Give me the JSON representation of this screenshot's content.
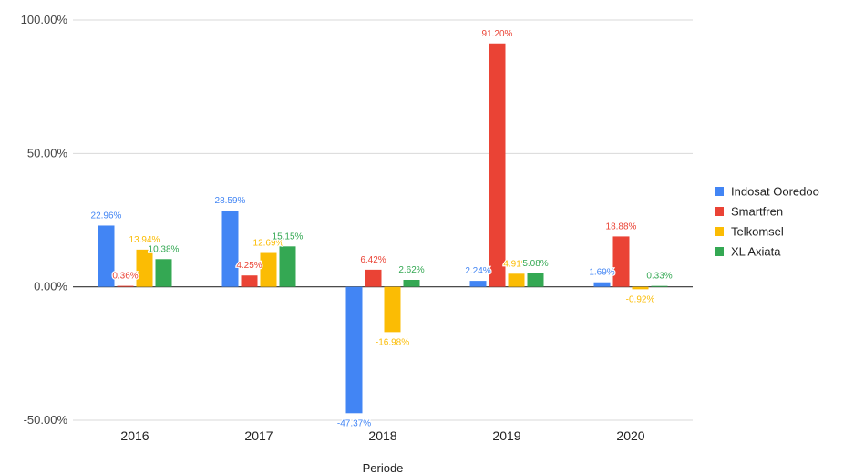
{
  "chart_data": {
    "type": "bar",
    "title": "",
    "xlabel": "Periode",
    "ylabel": "",
    "categories": [
      "2016",
      "2017",
      "2018",
      "2019",
      "2020"
    ],
    "ylim": [
      -50,
      100
    ],
    "yticks": [
      -50,
      0,
      50,
      100
    ],
    "ytick_labels": [
      "-50.00%",
      "0.00%",
      "50.00%",
      "100.00%"
    ],
    "grid": true,
    "legend_position": "right",
    "series": [
      {
        "name": "Indosat Ooredoo",
        "color": "#4285f4",
        "values": [
          22.96,
          28.59,
          -47.37,
          2.24,
          1.69
        ],
        "labels": [
          "22.96%",
          "28.59%",
          "-47.37%",
          "2.24%",
          "1.69%"
        ]
      },
      {
        "name": "Smartfren",
        "color": "#ea4335",
        "values": [
          0.36,
          4.25,
          6.42,
          91.2,
          18.88
        ],
        "labels": [
          "0.36%",
          "4.25%",
          "6.42%",
          "91.20%",
          "18.88%"
        ]
      },
      {
        "name": "Telkomsel",
        "color": "#fbbc04",
        "values": [
          13.94,
          12.69,
          -16.98,
          4.91,
          -0.92
        ],
        "labels": [
          "13.94%",
          "12.69%",
          "-16.98%",
          "4.91%",
          "-0.92%"
        ]
      },
      {
        "name": "XL Axiata",
        "color": "#34a853",
        "values": [
          10.38,
          15.15,
          2.62,
          5.08,
          0.33
        ],
        "labels": [
          "10.38%",
          "15.15%",
          "2.62%",
          "5.08%",
          "0.33%"
        ]
      }
    ]
  }
}
